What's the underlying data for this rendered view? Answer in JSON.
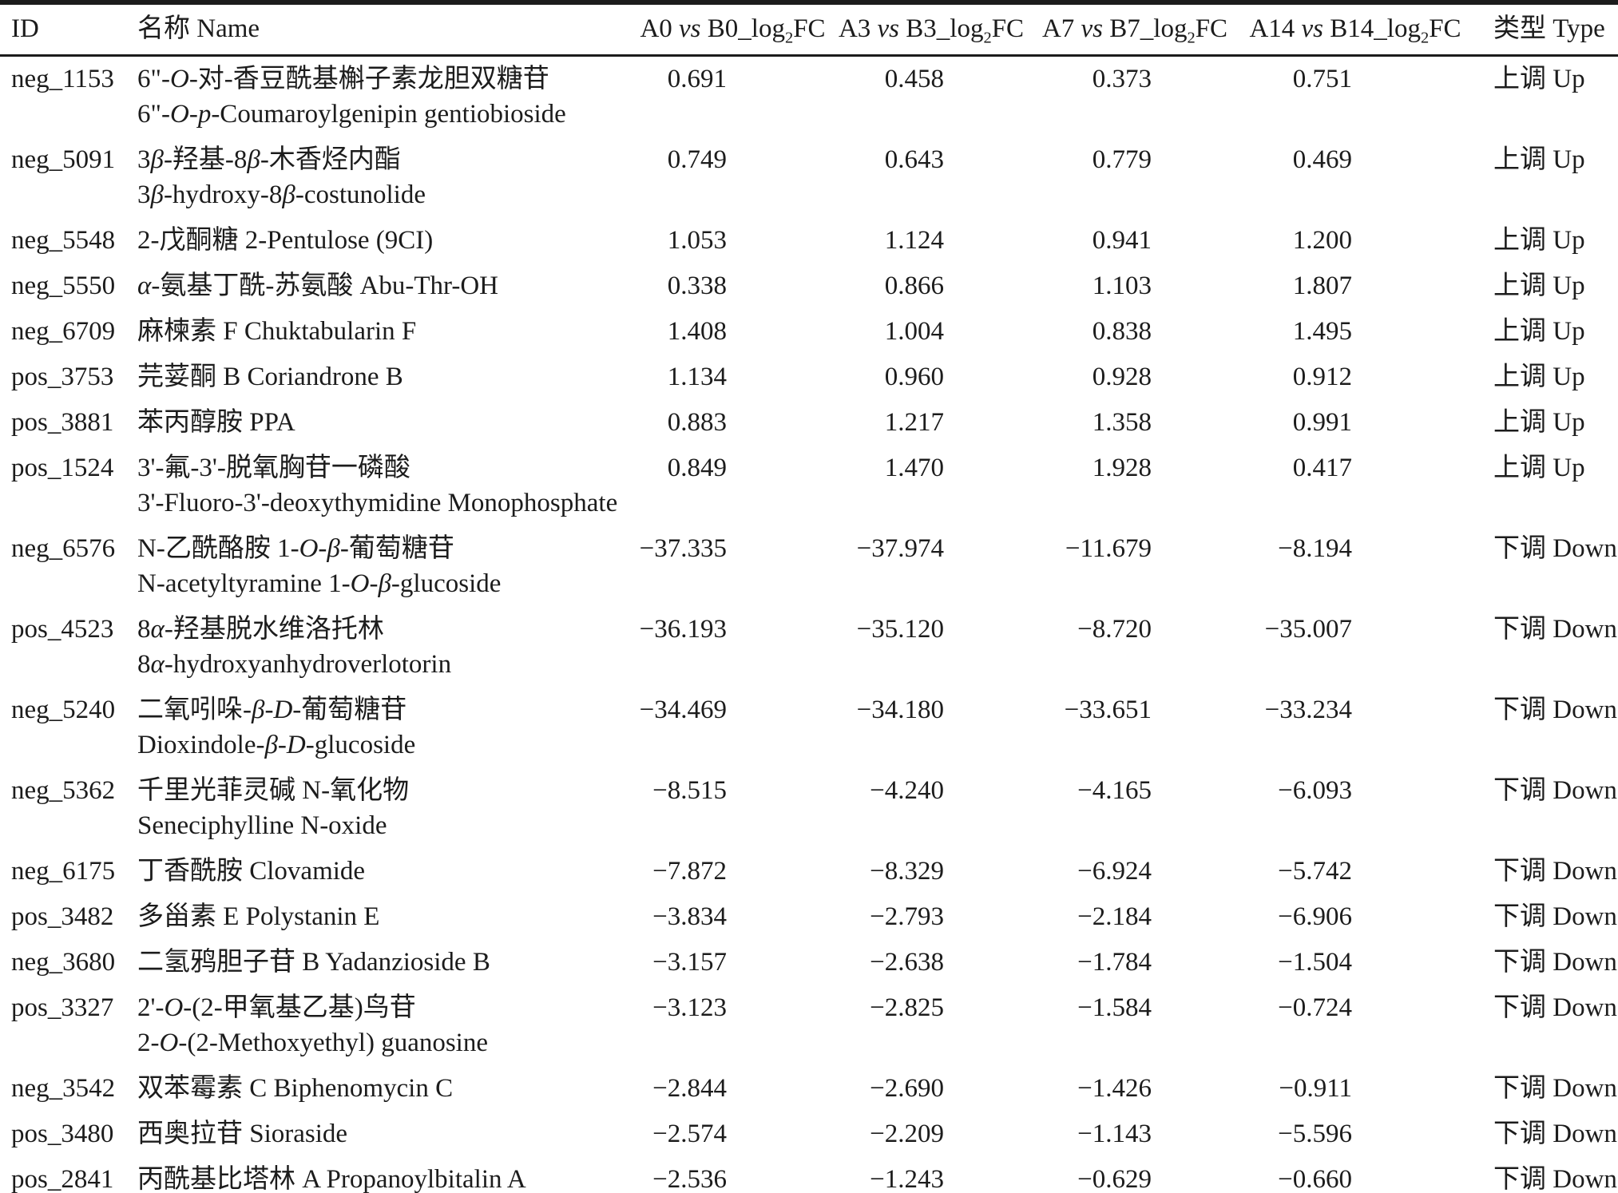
{
  "table": {
    "columns": [
      {
        "label": "ID"
      },
      {
        "label": "名称 Name"
      },
      {
        "pre": "A0 ",
        "vs": "vs",
        "mid": " B0_log",
        "sub": "2",
        "post": "FC"
      },
      {
        "pre": "A3 ",
        "vs": "vs",
        "mid": " B3_log",
        "sub": "2",
        "post": "FC"
      },
      {
        "pre": "A7 ",
        "vs": "vs",
        "mid": " B7_log",
        "sub": "2",
        "post": "FC"
      },
      {
        "pre": "A14 ",
        "vs": "vs",
        "mid": " B14_log",
        "sub": "2",
        "post": "FC"
      },
      {
        "label": "类型 Type"
      }
    ],
    "rows": [
      {
        "id": "neg_1153",
        "name_lines": [
          "6\"-*O*-对-香豆酰基槲子素龙胆双糖苷",
          "6\"-*O*-*p*-Coumaroylgenipin gentiobioside"
        ],
        "log2fc": [
          "0.691",
          "0.458",
          "0.373",
          "0.751"
        ],
        "type": "上调 Up"
      },
      {
        "id": "neg_5091",
        "name_lines": [
          "3*β*-羟基-8*β*-木香烃内酯",
          "3*β*-hydroxy-8*β*-costunolide"
        ],
        "log2fc": [
          "0.749",
          "0.643",
          "0.779",
          "0.469"
        ],
        "type": "上调 Up"
      },
      {
        "id": "neg_5548",
        "name_lines": [
          "2-戊酮糖 2-Pentulose (9CI)"
        ],
        "log2fc": [
          "1.053",
          "1.124",
          "0.941",
          "1.200"
        ],
        "type": "上调 Up"
      },
      {
        "id": "neg_5550",
        "name_lines": [
          "*α*-氨基丁酰-苏氨酸 Abu-Thr-OH"
        ],
        "log2fc": [
          "0.338",
          "0.866",
          "1.103",
          "1.807"
        ],
        "type": "上调 Up"
      },
      {
        "id": "neg_6709",
        "name_lines": [
          "麻楝素 F Chuktabularin F"
        ],
        "log2fc": [
          "1.408",
          "1.004",
          "0.838",
          "1.495"
        ],
        "type": "上调 Up"
      },
      {
        "id": "pos_3753",
        "name_lines": [
          "芫荽酮 B Coriandrone B"
        ],
        "log2fc": [
          "1.134",
          "0.960",
          "0.928",
          "0.912"
        ],
        "type": "上调 Up"
      },
      {
        "id": "pos_3881",
        "name_lines": [
          "苯丙醇胺 PPA"
        ],
        "log2fc": [
          "0.883",
          "1.217",
          "1.358",
          "0.991"
        ],
        "type": "上调 Up"
      },
      {
        "id": "pos_1524",
        "name_lines": [
          "3'-氟-3'-脱氧胸苷一磷酸",
          "3'-Fluoro-3'-deoxythymidine Monophosphate"
        ],
        "log2fc": [
          "0.849",
          "1.470",
          "1.928",
          "0.417"
        ],
        "type": "上调 Up"
      },
      {
        "id": "neg_6576",
        "name_lines": [
          "N-乙酰酪胺 1-*O*-*β*-葡萄糖苷",
          "N-acetyltyramine 1-*O*-*β*-glucoside"
        ],
        "log2fc": [
          "−37.335",
          "−37.974",
          "−11.679",
          "−8.194"
        ],
        "type": "下调 Down"
      },
      {
        "id": "pos_4523",
        "name_lines": [
          "8*α*-羟基脱水维洛托林",
          "8*α*-hydroxyanhydroverlotorin"
        ],
        "log2fc": [
          "−36.193",
          "−35.120",
          "−8.720",
          "−35.007"
        ],
        "type": "下调 Down"
      },
      {
        "id": "neg_5240",
        "name_lines": [
          "二氧吲哚-*β*-*D*-葡萄糖苷",
          "Dioxindole-*β*-*D*-glucoside"
        ],
        "log2fc": [
          "−34.469",
          "−34.180",
          "−33.651",
          "−33.234"
        ],
        "type": "下调 Down"
      },
      {
        "id": "neg_5362",
        "name_lines": [
          "千里光菲灵碱 N-氧化物",
          "Seneciphylline N-oxide"
        ],
        "log2fc": [
          "−8.515",
          "−4.240",
          "−4.165",
          "−6.093"
        ],
        "type": "下调 Down"
      },
      {
        "id": "neg_6175",
        "name_lines": [
          "丁香酰胺 Clovamide"
        ],
        "log2fc": [
          "−7.872",
          "−8.329",
          "−6.924",
          "−5.742"
        ],
        "type": "下调 Down"
      },
      {
        "id": "pos_3482",
        "name_lines": [
          "多甾素 E Polystanin E"
        ],
        "log2fc": [
          "−3.834",
          "−2.793",
          "−2.184",
          "−6.906"
        ],
        "type": "下调 Down"
      },
      {
        "id": "neg_3680",
        "name_lines": [
          "二氢鸦胆子苷 B Yadanzioside B"
        ],
        "log2fc": [
          "−3.157",
          "−2.638",
          "−1.784",
          "−1.504"
        ],
        "type": "下调 Down"
      },
      {
        "id": "pos_3327",
        "name_lines": [
          "2'-*O*-(2-甲氧基乙基)鸟苷",
          "2-*O*-(2-Methoxyethyl) guanosine"
        ],
        "log2fc": [
          "−3.123",
          "−2.825",
          "−1.584",
          "−0.724"
        ],
        "type": "下调 Down"
      },
      {
        "id": "neg_3542",
        "name_lines": [
          "双苯霉素 C Biphenomycin C"
        ],
        "log2fc": [
          "−2.844",
          "−2.690",
          "−1.426",
          "−0.911"
        ],
        "type": "下调 Down"
      },
      {
        "id": "pos_3480",
        "name_lines": [
          "西奥拉苷 Sioraside"
        ],
        "log2fc": [
          "−2.574",
          "−2.209",
          "−1.143",
          "−5.596"
        ],
        "type": "下调 Down"
      },
      {
        "id": "pos_2841",
        "name_lines": [
          "丙酰基比塔林 A Propanoylbitalin A"
        ],
        "log2fc": [
          "−2.536",
          "−1.243",
          "−0.629",
          "−0.660"
        ],
        "type": "下调 Down"
      }
    ]
  }
}
